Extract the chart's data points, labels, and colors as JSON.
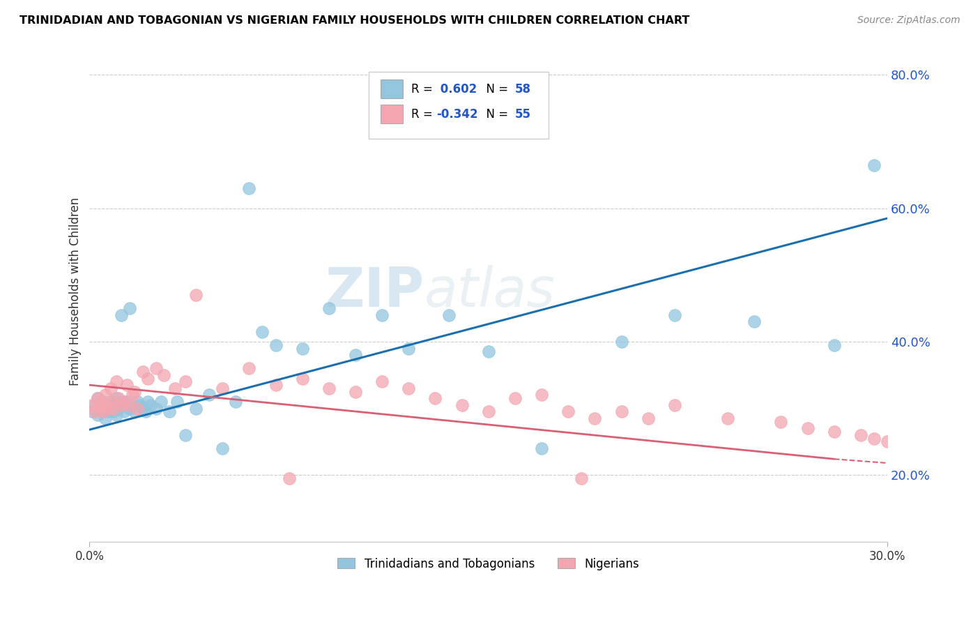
{
  "title": "TRINIDADIAN AND TOBAGONIAN VS NIGERIAN FAMILY HOUSEHOLDS WITH CHILDREN CORRELATION CHART",
  "source": "Source: ZipAtlas.com",
  "ylabel": "Family Households with Children",
  "legend_entry1_pre": "R = ",
  "legend_entry1_val": " 0.602",
  "legend_entry1_mid": "  N = ",
  "legend_entry1_n": "58",
  "legend_entry2_pre": "R = ",
  "legend_entry2_val": "-0.342",
  "legend_entry2_mid": "  N = ",
  "legend_entry2_n": "55",
  "legend_label1": "Trinidadians and Tobagonians",
  "legend_label2": "Nigerians",
  "r1": 0.602,
  "n1": 58,
  "r2": -0.342,
  "n2": 55,
  "color_blue": "#92c5de",
  "color_pink": "#f4a6b0",
  "color_line_blue": "#1a6faf",
  "color_line_pink": "#d95f74",
  "color_r_value": "#2255cc",
  "ytick_labels": [
    "20.0%",
    "40.0%",
    "60.0%",
    "80.0%"
  ],
  "ytick_values": [
    0.2,
    0.4,
    0.6,
    0.8
  ],
  "xlim": [
    0.0,
    0.3
  ],
  "ylim": [
    0.1,
    0.85
  ],
  "watermark_zip": "ZIP",
  "watermark_atlas": "atlas",
  "background_color": "#ffffff",
  "grid_color": "#cccccc",
  "blue_line_y0": 0.268,
  "blue_line_y1": 0.585,
  "pink_line_y0": 0.335,
  "pink_line_y1": 0.218,
  "pink_line_x1": 0.3,
  "pink_line_dash_x0": 0.28,
  "pink_line_dash_x1": 0.3,
  "pink_line_dash_y0": 0.224,
  "pink_line_dash_y1": 0.218
}
